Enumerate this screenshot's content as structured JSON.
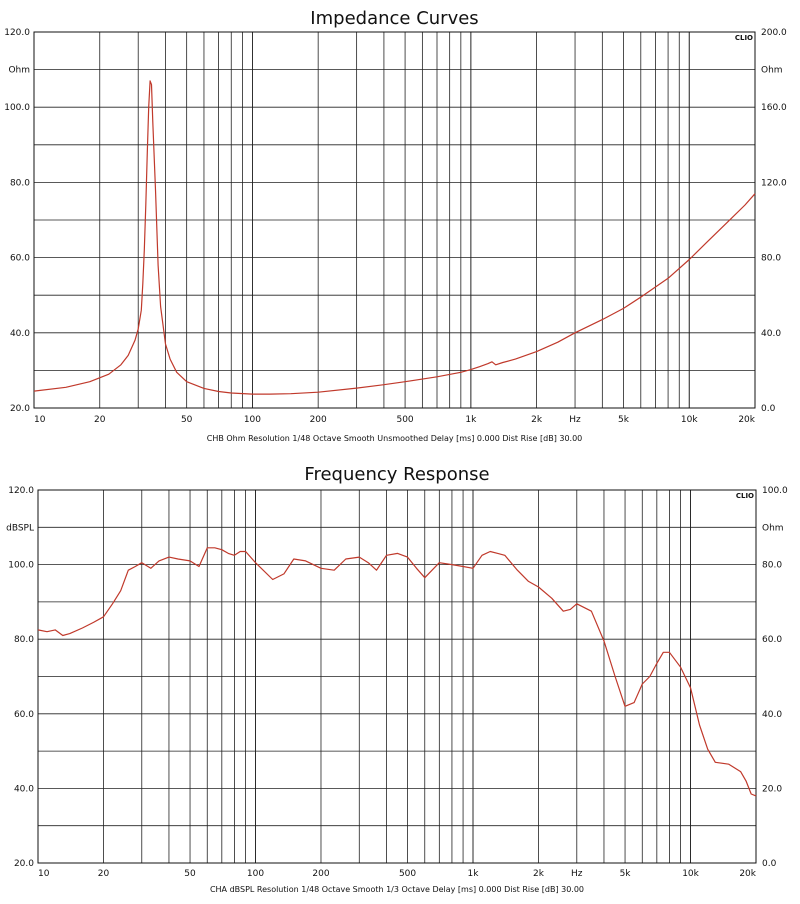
{
  "charts": [
    {
      "title": "Impedance Curves",
      "badge": "CLIO",
      "left_unit": "Ohm",
      "right_unit": "Ohm",
      "footer": "CHB Ohm  Resolution 1/48 Octave  Smooth Unsmoothed  Delay [ms] 0.000  Dist Rise [dB] 30.00",
      "hz_label": "Hz",
      "x_ticks": [
        {
          "v": 10,
          "label": "10"
        },
        {
          "v": 20,
          "label": "20"
        },
        {
          "v": 50,
          "label": "50"
        },
        {
          "v": 100,
          "label": "100"
        },
        {
          "v": 200,
          "label": "200"
        },
        {
          "v": 500,
          "label": "500"
        },
        {
          "v": 1000,
          "label": "1k"
        },
        {
          "v": 2000,
          "label": "2k"
        },
        {
          "v": 5000,
          "label": "5k"
        },
        {
          "v": 10000,
          "label": "10k"
        },
        {
          "v": 20000,
          "label": "20k"
        }
      ],
      "left_ticks": [
        {
          "v": 120,
          "label": "120.0"
        },
        {
          "v": 100,
          "label": "100.0"
        },
        {
          "v": 80,
          "label": "80.0"
        },
        {
          "v": 60,
          "label": "60.0"
        },
        {
          "v": 40,
          "label": "40.0"
        },
        {
          "v": 20,
          "label": "20.0"
        }
      ],
      "right_ticks": [
        {
          "v": 120,
          "label": "200.0"
        },
        {
          "v": 100,
          "label": "160.0"
        },
        {
          "v": 80,
          "label": "120.0"
        },
        {
          "v": 60,
          "label": "80.0"
        },
        {
          "v": 40,
          "label": "40.0"
        },
        {
          "v": 20,
          "label": "0.0"
        }
      ]
    },
    {
      "title": "Frequency Response",
      "badge": "CLIO",
      "left_unit": "dBSPL",
      "right_unit": "Ohm",
      "footer": "CHA dBSPL  Resolution 1/48 Octave  Smooth 1/3 Octave  Delay [ms] 0.000  Dist Rise [dB] 30.00",
      "hz_label": "Hz",
      "x_ticks": [
        {
          "v": 10,
          "label": "10"
        },
        {
          "v": 20,
          "label": "20"
        },
        {
          "v": 50,
          "label": "50"
        },
        {
          "v": 100,
          "label": "100"
        },
        {
          "v": 200,
          "label": "200"
        },
        {
          "v": 500,
          "label": "500"
        },
        {
          "v": 1000,
          "label": "1k"
        },
        {
          "v": 2000,
          "label": "2k"
        },
        {
          "v": 5000,
          "label": "5k"
        },
        {
          "v": 10000,
          "label": "10k"
        },
        {
          "v": 20000,
          "label": "20k"
        }
      ],
      "left_ticks": [
        {
          "v": 120,
          "label": "120.0"
        },
        {
          "v": 100,
          "label": "100.0"
        },
        {
          "v": 80,
          "label": "80.0"
        },
        {
          "v": 60,
          "label": "60.0"
        },
        {
          "v": 40,
          "label": "40.0"
        },
        {
          "v": 20,
          "label": "20.0"
        }
      ],
      "right_ticks": [
        {
          "v": 120,
          "label": "100.0"
        },
        {
          "v": 100,
          "label": "80.0"
        },
        {
          "v": 80,
          "label": "60.0"
        },
        {
          "v": 60,
          "label": "40.0"
        },
        {
          "v": 40,
          "label": "20.0"
        },
        {
          "v": 20,
          "label": "0.0"
        }
      ]
    }
  ],
  "chart_data": [
    {
      "type": "line",
      "title": "Impedance Curves",
      "x_scale": "log",
      "xlim": [
        10,
        20000
      ],
      "ylim": [
        20,
        120
      ],
      "y2lim": [
        0,
        200
      ],
      "xlabel": "Hz",
      "ylabel": "Ohm",
      "grid": true,
      "color": "#c0392b",
      "series": [
        {
          "x": [
            10,
            14,
            18,
            22,
            25,
            27,
            29,
            30,
            31,
            31.5,
            32,
            32.5,
            33,
            33.5,
            34,
            34.5,
            35,
            36,
            37,
            38,
            40,
            42,
            45,
            50,
            60,
            70,
            80,
            100,
            120,
            150,
            200,
            300,
            400,
            500,
            700,
            900,
            1000,
            1100,
            1200,
            1250,
            1300,
            1400,
            1600,
            2000,
            2500,
            3000,
            4000,
            5000,
            6000,
            8000,
            10000,
            12000,
            15000,
            18000,
            20000
          ],
          "y": [
            24.5,
            25.5,
            27,
            29,
            31.5,
            34,
            38,
            41,
            46,
            53,
            62,
            74,
            88,
            100,
            107,
            106,
            96,
            78,
            58,
            47,
            37,
            33,
            29.5,
            27,
            25.2,
            24.4,
            24,
            23.7,
            23.7,
            23.8,
            24.2,
            25.3,
            26.2,
            27,
            28.3,
            29.5,
            30.2,
            31,
            31.8,
            32.3,
            31.5,
            32.1,
            33,
            35,
            37.5,
            40,
            43.5,
            46.5,
            49.5,
            54.5,
            59.5,
            64,
            69.5,
            74,
            77
          ]
        }
      ]
    },
    {
      "type": "line",
      "title": "Frequency Response",
      "x_scale": "log",
      "xlim": [
        10,
        20000
      ],
      "ylim": [
        20,
        120
      ],
      "y2lim": [
        0,
        100
      ],
      "xlabel": "Hz",
      "ylabel": "dBSPL",
      "grid": true,
      "color": "#c0392b",
      "series": [
        {
          "x": [
            10,
            11,
            12,
            13,
            14,
            16,
            18,
            20,
            22,
            24,
            26,
            28,
            30,
            33,
            36,
            40,
            44,
            50,
            55,
            60,
            65,
            70,
            75,
            80,
            85,
            90,
            100,
            120,
            135,
            150,
            170,
            200,
            230,
            260,
            300,
            330,
            360,
            400,
            450,
            500,
            550,
            600,
            700,
            800,
            900,
            1000,
            1100,
            1200,
            1300,
            1400,
            1600,
            1800,
            2000,
            2300,
            2600,
            2800,
            3000,
            3500,
            4000,
            4500,
            5000,
            5500,
            6000,
            6500,
            7000,
            7500,
            8000,
            9000,
            10000,
            11000,
            12000,
            13000,
            15000,
            17000,
            18000,
            19000,
            20000
          ],
          "y": [
            82.5,
            82,
            82.5,
            81,
            81.5,
            83,
            84.5,
            86,
            89.5,
            93,
            98.5,
            99.5,
            100.5,
            99,
            101,
            102,
            101.5,
            101,
            99.5,
            104.5,
            104.5,
            104,
            103,
            102.5,
            103.5,
            103.5,
            100.5,
            96,
            97.5,
            101.5,
            101,
            99,
            98.5,
            101.5,
            102,
            100.5,
            98.5,
            102.5,
            103,
            102,
            99,
            96.5,
            100.5,
            100,
            99.5,
            99,
            102.5,
            103.5,
            103,
            102.5,
            98.5,
            95.5,
            94,
            91,
            87.5,
            88,
            89.5,
            87.5,
            79.5,
            70,
            62,
            63,
            68,
            70,
            73.5,
            76.5,
            76.5,
            72.5,
            67,
            57,
            50.5,
            47,
            46.5,
            44.5,
            42,
            38.5,
            38
          ]
        }
      ]
    }
  ]
}
